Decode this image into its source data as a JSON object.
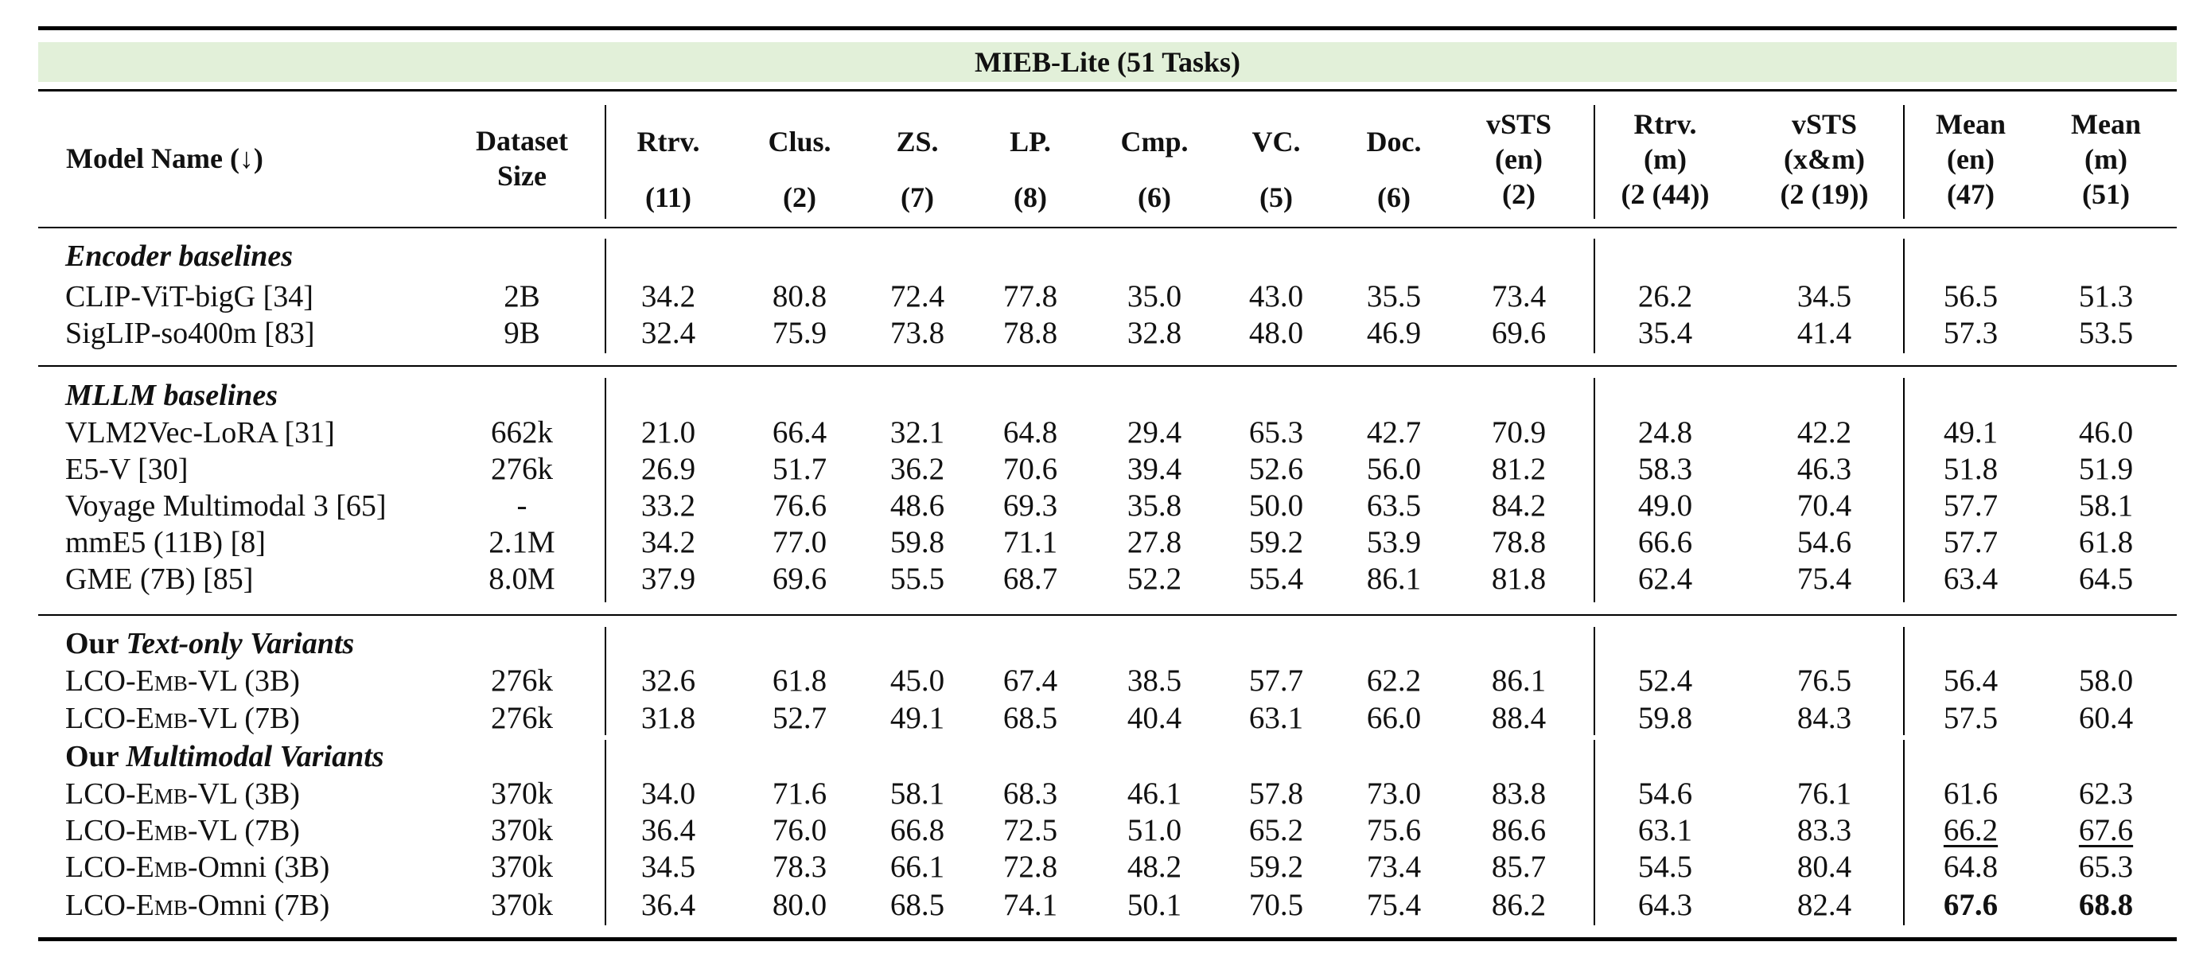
{
  "title": "MIEB-Lite (51 Tasks)",
  "header": {
    "model_name": "Model Name (↓)",
    "dataset_size": [
      "Dataset",
      "Size"
    ],
    "columns": [
      {
        "lines": [
          "Rtrv.",
          "(11)"
        ]
      },
      {
        "lines": [
          "Clus.",
          "(2)"
        ]
      },
      {
        "lines": [
          "ZS.",
          "(7)"
        ]
      },
      {
        "lines": [
          "LP.",
          "(8)"
        ]
      },
      {
        "lines": [
          "Cmp.",
          "(6)"
        ]
      },
      {
        "lines": [
          "VC.",
          "(5)"
        ]
      },
      {
        "lines": [
          "Doc.",
          "(6)"
        ]
      },
      {
        "lines": [
          "vSTS",
          "(en)",
          "(2)"
        ]
      },
      {
        "lines": [
          "Rtrv.",
          "(m)",
          "(2 (44))"
        ]
      },
      {
        "lines": [
          "vSTS",
          "(x&m)",
          "(2 (19))"
        ]
      },
      {
        "lines": [
          "Mean",
          "(en)",
          "(47)"
        ]
      },
      {
        "lines": [
          "Mean",
          "(m)",
          "(51)"
        ]
      }
    ]
  },
  "sections": [
    {
      "label_prefix": "",
      "label_italic": "Encoder baselines",
      "rows": [
        {
          "name_pre": "CLIP-ViT-bigG [34]",
          "name_sc": "",
          "name_post": "",
          "size": "2B",
          "values": [
            "34.2",
            "80.8",
            "72.4",
            "77.8",
            "35.0",
            "43.0",
            "35.5",
            "73.4",
            "26.2",
            "34.5",
            "56.5",
            "51.3"
          ],
          "emph": [
            "",
            ""
          ]
        },
        {
          "name_pre": "SigLIP-so400m [83]",
          "name_sc": "",
          "name_post": "",
          "size": "9B",
          "values": [
            "32.4",
            "75.9",
            "73.8",
            "78.8",
            "32.8",
            "48.0",
            "46.9",
            "69.6",
            "35.4",
            "41.4",
            "57.3",
            "53.5"
          ],
          "emph": [
            "",
            ""
          ]
        }
      ]
    },
    {
      "label_prefix": "",
      "label_italic": "MLLM baselines",
      "rows": [
        {
          "name_pre": "VLM2Vec-LoRA [31]",
          "name_sc": "",
          "name_post": "",
          "size": "662k",
          "values": [
            "21.0",
            "66.4",
            "32.1",
            "64.8",
            "29.4",
            "65.3",
            "42.7",
            "70.9",
            "24.8",
            "42.2",
            "49.1",
            "46.0"
          ],
          "emph": [
            "",
            ""
          ]
        },
        {
          "name_pre": "E5-V [30]",
          "name_sc": "",
          "name_post": "",
          "size": "276k",
          "values": [
            "26.9",
            "51.7",
            "36.2",
            "70.6",
            "39.4",
            "52.6",
            "56.0",
            "81.2",
            "58.3",
            "46.3",
            "51.8",
            "51.9"
          ],
          "emph": [
            "",
            ""
          ]
        },
        {
          "name_pre": "Voyage Multimodal 3 [65]",
          "name_sc": "",
          "name_post": "",
          "size": "-",
          "values": [
            "33.2",
            "76.6",
            "48.6",
            "69.3",
            "35.8",
            "50.0",
            "63.5",
            "84.2",
            "49.0",
            "70.4",
            "57.7",
            "58.1"
          ],
          "emph": [
            "",
            ""
          ]
        },
        {
          "name_pre": "mmE5 (11B) [8]",
          "name_sc": "",
          "name_post": "",
          "size": "2.1M",
          "values": [
            "34.2",
            "77.0",
            "59.8",
            "71.1",
            "27.8",
            "59.2",
            "53.9",
            "78.8",
            "66.6",
            "54.6",
            "57.7",
            "61.8"
          ],
          "emph": [
            "",
            ""
          ]
        },
        {
          "name_pre": "GME (7B) [85]",
          "name_sc": "",
          "name_post": "",
          "size": "8.0M",
          "values": [
            "37.9",
            "69.6",
            "55.5",
            "68.7",
            "52.2",
            "55.4",
            "86.1",
            "81.8",
            "62.4",
            "75.4",
            "63.4",
            "64.5"
          ],
          "emph": [
            "",
            ""
          ]
        }
      ]
    },
    {
      "label_prefix": "Our ",
      "label_italic": "Text-only Variants",
      "rows": [
        {
          "name_pre": "LCO-",
          "name_sc": "Emb",
          "name_post": "-VL (3B)",
          "size": "276k",
          "values": [
            "32.6",
            "61.8",
            "45.0",
            "67.4",
            "38.5",
            "57.7",
            "62.2",
            "86.1",
            "52.4",
            "76.5",
            "56.4",
            "58.0"
          ],
          "emph": [
            "",
            ""
          ]
        },
        {
          "name_pre": "LCO-",
          "name_sc": "Emb",
          "name_post": "-VL (7B)",
          "size": "276k",
          "values": [
            "31.8",
            "52.7",
            "49.1",
            "68.5",
            "40.4",
            "63.1",
            "66.0",
            "88.4",
            "59.8",
            "84.3",
            "57.5",
            "60.4"
          ],
          "emph": [
            "",
            ""
          ]
        }
      ]
    },
    {
      "label_prefix": "Our ",
      "label_italic": "Multimodal Variants",
      "rows": [
        {
          "name_pre": "LCO-",
          "name_sc": "Emb",
          "name_post": "-VL (3B)",
          "size": "370k",
          "values": [
            "34.0",
            "71.6",
            "58.1",
            "68.3",
            "46.1",
            "57.8",
            "73.0",
            "83.8",
            "54.6",
            "76.1",
            "61.6",
            "62.3"
          ],
          "emph": [
            "",
            ""
          ]
        },
        {
          "name_pre": "LCO-",
          "name_sc": "Emb",
          "name_post": "-VL (7B)",
          "size": "370k",
          "values": [
            "36.4",
            "76.0",
            "66.8",
            "72.5",
            "51.0",
            "65.2",
            "75.6",
            "86.6",
            "63.1",
            "83.3",
            "66.2",
            "67.6"
          ],
          "emph": [
            "underline",
            "underline"
          ]
        },
        {
          "name_pre": "LCO-",
          "name_sc": "Emb",
          "name_post": "-Omni (3B)",
          "size": "370k",
          "values": [
            "34.5",
            "78.3",
            "66.1",
            "72.8",
            "48.2",
            "59.2",
            "73.4",
            "85.7",
            "54.5",
            "80.4",
            "64.8",
            "65.3"
          ],
          "emph": [
            "",
            ""
          ]
        },
        {
          "name_pre": "LCO-",
          "name_sc": "Emb",
          "name_post": "-Omni (7B)",
          "size": "370k",
          "values": [
            "36.4",
            "80.0",
            "68.5",
            "74.1",
            "50.1",
            "70.5",
            "75.4",
            "86.2",
            "64.3",
            "82.4",
            "67.6",
            "68.8"
          ],
          "emph": [
            "bold",
            "bold"
          ]
        }
      ]
    }
  ]
}
